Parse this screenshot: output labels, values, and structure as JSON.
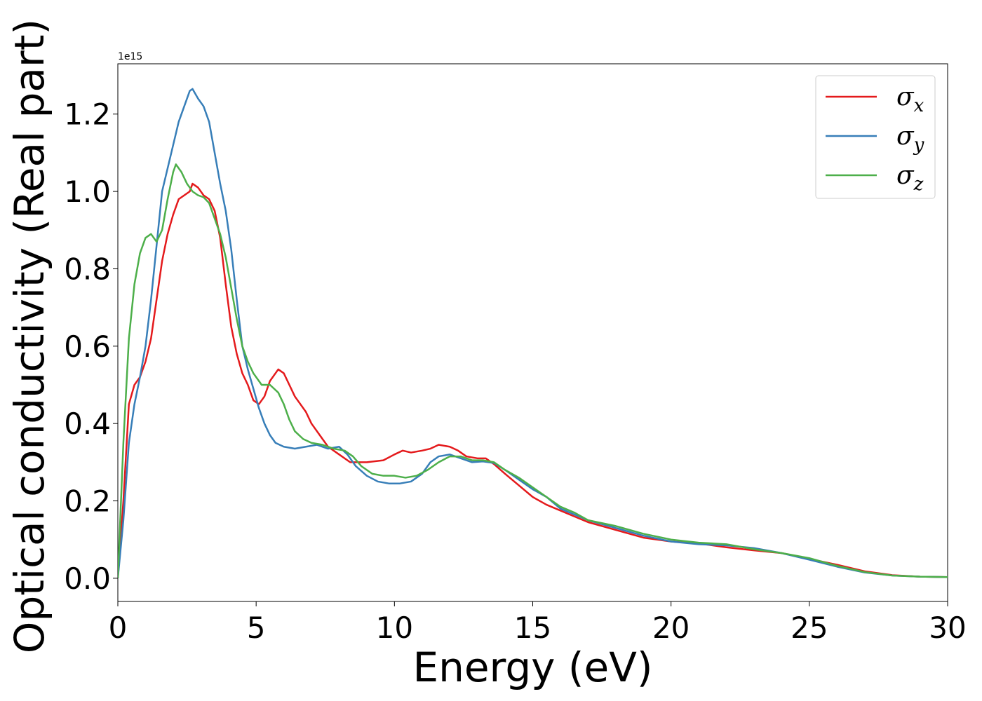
{
  "chart_data": {
    "type": "line",
    "xlabel": "Energy (eV)",
    "ylabel": "Optical conductivity (Real part)",
    "y_offset_label": "1e15",
    "xlim": [
      0,
      30
    ],
    "ylim": [
      -0.06,
      1.33
    ],
    "x_ticks": [
      0,
      5,
      10,
      15,
      20,
      25,
      30
    ],
    "x_tick_labels": [
      "0",
      "5",
      "10",
      "15",
      "20",
      "25",
      "30"
    ],
    "y_ticks": [
      0.0,
      0.2,
      0.4,
      0.6,
      0.8,
      1.0,
      1.2
    ],
    "y_tick_labels": [
      "0.0",
      "0.2",
      "0.4",
      "0.6",
      "0.8",
      "1.0",
      "1.2"
    ],
    "grid": false,
    "legend_position": "top-right",
    "series": [
      {
        "name": "σx",
        "symbol": "σ",
        "subscript": "x",
        "color": "#e41a1c",
        "points": [
          [
            0,
            0.0
          ],
          [
            0.2,
            0.2
          ],
          [
            0.4,
            0.45
          ],
          [
            0.6,
            0.5
          ],
          [
            0.8,
            0.52
          ],
          [
            1.0,
            0.56
          ],
          [
            1.2,
            0.62
          ],
          [
            1.4,
            0.72
          ],
          [
            1.6,
            0.82
          ],
          [
            1.8,
            0.89
          ],
          [
            2.0,
            0.94
          ],
          [
            2.2,
            0.98
          ],
          [
            2.4,
            0.99
          ],
          [
            2.6,
            1.0
          ],
          [
            2.7,
            1.02
          ],
          [
            2.9,
            1.01
          ],
          [
            3.1,
            0.99
          ],
          [
            3.3,
            0.98
          ],
          [
            3.5,
            0.95
          ],
          [
            3.7,
            0.88
          ],
          [
            3.9,
            0.76
          ],
          [
            4.1,
            0.65
          ],
          [
            4.3,
            0.58
          ],
          [
            4.5,
            0.53
          ],
          [
            4.7,
            0.5
          ],
          [
            4.9,
            0.46
          ],
          [
            5.1,
            0.45
          ],
          [
            5.3,
            0.47
          ],
          [
            5.5,
            0.51
          ],
          [
            5.7,
            0.53
          ],
          [
            5.8,
            0.54
          ],
          [
            6.0,
            0.53
          ],
          [
            6.2,
            0.5
          ],
          [
            6.4,
            0.47
          ],
          [
            6.6,
            0.45
          ],
          [
            6.8,
            0.43
          ],
          [
            7.0,
            0.4
          ],
          [
            7.3,
            0.37
          ],
          [
            7.6,
            0.34
          ],
          [
            8.0,
            0.32
          ],
          [
            8.4,
            0.3
          ],
          [
            9.0,
            0.3
          ],
          [
            9.6,
            0.305
          ],
          [
            10.0,
            0.32
          ],
          [
            10.3,
            0.33
          ],
          [
            10.6,
            0.325
          ],
          [
            11.0,
            0.33
          ],
          [
            11.3,
            0.335
          ],
          [
            11.6,
            0.345
          ],
          [
            12.0,
            0.34
          ],
          [
            12.3,
            0.33
          ],
          [
            12.6,
            0.315
          ],
          [
            13.0,
            0.31
          ],
          [
            13.3,
            0.31
          ],
          [
            13.6,
            0.295
          ],
          [
            14.0,
            0.27
          ],
          [
            14.5,
            0.24
          ],
          [
            15.0,
            0.21
          ],
          [
            15.5,
            0.19
          ],
          [
            16.0,
            0.175
          ],
          [
            16.5,
            0.16
          ],
          [
            17.0,
            0.145
          ],
          [
            18.0,
            0.125
          ],
          [
            19.0,
            0.105
          ],
          [
            20.0,
            0.095
          ],
          [
            21.0,
            0.09
          ],
          [
            22.0,
            0.08
          ],
          [
            23.0,
            0.072
          ],
          [
            24.0,
            0.065
          ],
          [
            25.0,
            0.05
          ],
          [
            26.0,
            0.035
          ],
          [
            27.0,
            0.018
          ],
          [
            28.0,
            0.008
          ],
          [
            29.0,
            0.004
          ],
          [
            30.0,
            0.003
          ]
        ]
      },
      {
        "name": "σy",
        "symbol": "σ",
        "subscript": "y",
        "color": "#377eb8",
        "points": [
          [
            0,
            0.0
          ],
          [
            0.2,
            0.15
          ],
          [
            0.4,
            0.35
          ],
          [
            0.6,
            0.45
          ],
          [
            0.8,
            0.52
          ],
          [
            1.0,
            0.6
          ],
          [
            1.2,
            0.72
          ],
          [
            1.4,
            0.86
          ],
          [
            1.6,
            1.0
          ],
          [
            1.8,
            1.06
          ],
          [
            2.0,
            1.12
          ],
          [
            2.2,
            1.18
          ],
          [
            2.4,
            1.22
          ],
          [
            2.6,
            1.26
          ],
          [
            2.7,
            1.265
          ],
          [
            2.9,
            1.24
          ],
          [
            3.1,
            1.22
          ],
          [
            3.3,
            1.18
          ],
          [
            3.5,
            1.1
          ],
          [
            3.7,
            1.02
          ],
          [
            3.9,
            0.95
          ],
          [
            4.1,
            0.85
          ],
          [
            4.3,
            0.72
          ],
          [
            4.5,
            0.6
          ],
          [
            4.7,
            0.54
          ],
          [
            4.9,
            0.49
          ],
          [
            5.1,
            0.44
          ],
          [
            5.3,
            0.4
          ],
          [
            5.5,
            0.37
          ],
          [
            5.7,
            0.35
          ],
          [
            6.0,
            0.34
          ],
          [
            6.4,
            0.335
          ],
          [
            6.8,
            0.34
          ],
          [
            7.2,
            0.345
          ],
          [
            7.6,
            0.335
          ],
          [
            8.0,
            0.34
          ],
          [
            8.3,
            0.32
          ],
          [
            8.6,
            0.29
          ],
          [
            9.0,
            0.265
          ],
          [
            9.4,
            0.25
          ],
          [
            9.8,
            0.245
          ],
          [
            10.2,
            0.245
          ],
          [
            10.6,
            0.25
          ],
          [
            11.0,
            0.27
          ],
          [
            11.3,
            0.3
          ],
          [
            11.6,
            0.315
          ],
          [
            12.0,
            0.32
          ],
          [
            12.4,
            0.31
          ],
          [
            12.8,
            0.3
          ],
          [
            13.2,
            0.302
          ],
          [
            13.6,
            0.298
          ],
          [
            14.0,
            0.28
          ],
          [
            14.5,
            0.255
          ],
          [
            15.0,
            0.23
          ],
          [
            15.5,
            0.21
          ],
          [
            16.0,
            0.18
          ],
          [
            16.5,
            0.165
          ],
          [
            17.0,
            0.15
          ],
          [
            18.0,
            0.13
          ],
          [
            19.0,
            0.11
          ],
          [
            20.0,
            0.095
          ],
          [
            21.0,
            0.088
          ],
          [
            22.0,
            0.085
          ],
          [
            23.0,
            0.078
          ],
          [
            24.0,
            0.065
          ],
          [
            25.0,
            0.048
          ],
          [
            26.0,
            0.03
          ],
          [
            27.0,
            0.015
          ],
          [
            28.0,
            0.007
          ],
          [
            29.0,
            0.004
          ],
          [
            30.0,
            0.003
          ]
        ]
      },
      {
        "name": "σz",
        "symbol": "σ",
        "subscript": "z",
        "color": "#4daf4a",
        "points": [
          [
            0,
            0.0
          ],
          [
            0.2,
            0.35
          ],
          [
            0.4,
            0.62
          ],
          [
            0.6,
            0.76
          ],
          [
            0.8,
            0.84
          ],
          [
            1.0,
            0.88
          ],
          [
            1.2,
            0.89
          ],
          [
            1.4,
            0.87
          ],
          [
            1.6,
            0.9
          ],
          [
            1.8,
            0.98
          ],
          [
            2.0,
            1.05
          ],
          [
            2.1,
            1.07
          ],
          [
            2.3,
            1.05
          ],
          [
            2.5,
            1.02
          ],
          [
            2.7,
            1.0
          ],
          [
            2.9,
            0.99
          ],
          [
            3.1,
            0.985
          ],
          [
            3.3,
            0.97
          ],
          [
            3.5,
            0.93
          ],
          [
            3.7,
            0.89
          ],
          [
            3.9,
            0.83
          ],
          [
            4.1,
            0.75
          ],
          [
            4.3,
            0.67
          ],
          [
            4.5,
            0.6
          ],
          [
            4.7,
            0.56
          ],
          [
            4.9,
            0.53
          ],
          [
            5.2,
            0.5
          ],
          [
            5.5,
            0.5
          ],
          [
            5.8,
            0.48
          ],
          [
            6.0,
            0.45
          ],
          [
            6.2,
            0.41
          ],
          [
            6.4,
            0.38
          ],
          [
            6.7,
            0.36
          ],
          [
            7.0,
            0.35
          ],
          [
            7.4,
            0.345
          ],
          [
            7.8,
            0.335
          ],
          [
            8.2,
            0.33
          ],
          [
            8.5,
            0.315
          ],
          [
            8.8,
            0.29
          ],
          [
            9.2,
            0.27
          ],
          [
            9.6,
            0.265
          ],
          [
            10.0,
            0.265
          ],
          [
            10.4,
            0.26
          ],
          [
            10.8,
            0.265
          ],
          [
            11.2,
            0.28
          ],
          [
            11.6,
            0.3
          ],
          [
            12.0,
            0.315
          ],
          [
            12.4,
            0.315
          ],
          [
            12.8,
            0.305
          ],
          [
            13.2,
            0.305
          ],
          [
            13.6,
            0.3
          ],
          [
            14.0,
            0.28
          ],
          [
            14.5,
            0.26
          ],
          [
            15.0,
            0.235
          ],
          [
            15.5,
            0.21
          ],
          [
            16.0,
            0.185
          ],
          [
            16.5,
            0.17
          ],
          [
            17.0,
            0.15
          ],
          [
            18.0,
            0.135
          ],
          [
            19.0,
            0.115
          ],
          [
            20.0,
            0.1
          ],
          [
            21.0,
            0.092
          ],
          [
            22.0,
            0.088
          ],
          [
            23.0,
            0.075
          ],
          [
            24.0,
            0.065
          ],
          [
            25.0,
            0.052
          ],
          [
            26.0,
            0.032
          ],
          [
            27.0,
            0.016
          ],
          [
            28.0,
            0.007
          ],
          [
            29.0,
            0.004
          ],
          [
            30.0,
            0.003
          ]
        ]
      }
    ]
  }
}
